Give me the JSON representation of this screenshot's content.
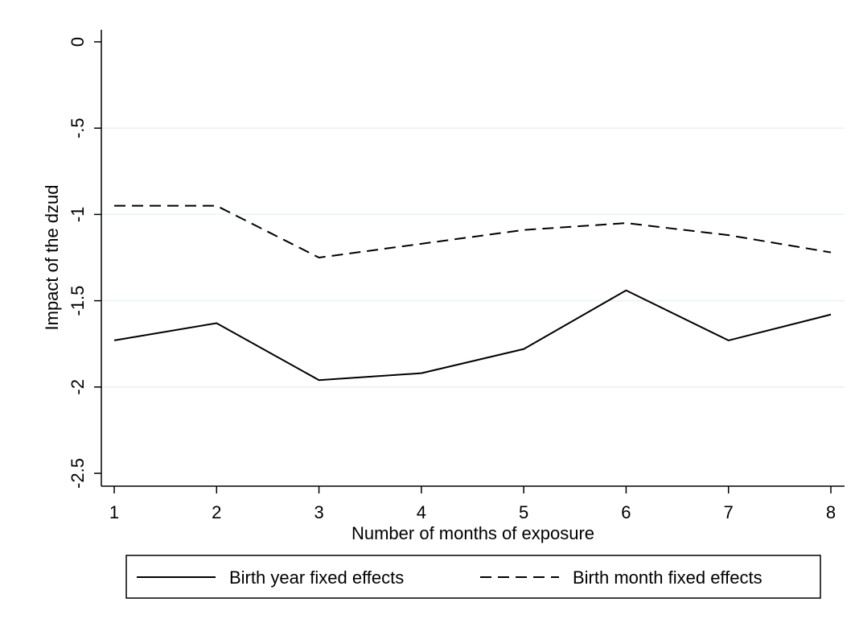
{
  "chart_data": {
    "type": "line",
    "xlabel": "Number of months of exposure",
    "ylabel": "Impact of the dzud",
    "x": [
      1,
      2,
      3,
      4,
      5,
      6,
      7,
      8
    ],
    "x_ticks": [
      "1",
      "2",
      "3",
      "4",
      "5",
      "6",
      "7",
      "8"
    ],
    "xlim": [
      1,
      8
    ],
    "ylim": [
      -2.5,
      0
    ],
    "y_ticks": [
      {
        "value": 0,
        "label": "0"
      },
      {
        "value": -0.5,
        "label": "-.5"
      },
      {
        "value": -1,
        "label": "-1"
      },
      {
        "value": -1.5,
        "label": "-1.5"
      },
      {
        "value": -2,
        "label": "-2"
      },
      {
        "value": -2.5,
        "label": "-2.5"
      }
    ],
    "grid": "horizontal",
    "legend_position": "bottom",
    "series": [
      {
        "name": "Birth year fixed effects",
        "style": "solid",
        "color": "#000000",
        "values": [
          -1.73,
          -1.63,
          -1.96,
          -1.92,
          -1.78,
          -1.44,
          -1.73,
          -1.58
        ]
      },
      {
        "name": "Birth month fixed effects",
        "style": "dashed",
        "color": "#000000",
        "values": [
          -0.95,
          -0.95,
          -1.25,
          -1.17,
          -1.09,
          -1.05,
          -1.12,
          -1.22
        ]
      }
    ]
  }
}
